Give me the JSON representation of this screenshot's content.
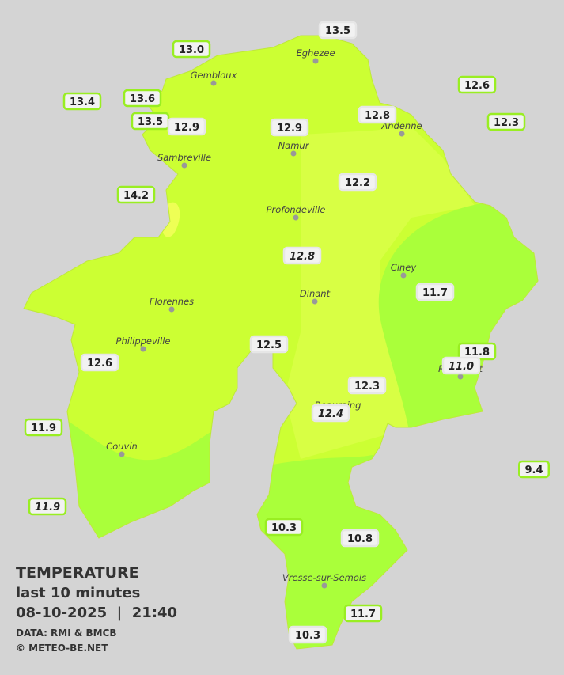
{
  "legend": {
    "title": "TEMPERATURE",
    "period": "last 10 minutes",
    "datetime": "08-10-2025  |  21:40",
    "source": "DATA: RMI & BMCB",
    "credit": "© METEO-BE.NET"
  },
  "towns": [
    "Eghezee",
    "Gembloux",
    "Andenne",
    "Namur",
    "Sambreville",
    "Profondeville",
    "Ciney",
    "Dinant",
    "Florennes",
    "Philippeville",
    "Rochefort",
    "Beauraing",
    "Couvin",
    "Vresse-sur-Semois"
  ],
  "stations": [
    "13.5",
    "13.0",
    "13.4",
    "13.6",
    "13.5",
    "12.9",
    "12.9",
    "12.8",
    "12.6",
    "12.3",
    "14.2",
    "12.2",
    "12.8",
    "11.7",
    "11.8",
    "11.0",
    "12.5",
    "12.6",
    "12.3",
    "12.4",
    "11.9",
    "11.9",
    "9.4",
    "10.3",
    "10.8",
    "11.7",
    "10.3"
  ]
}
